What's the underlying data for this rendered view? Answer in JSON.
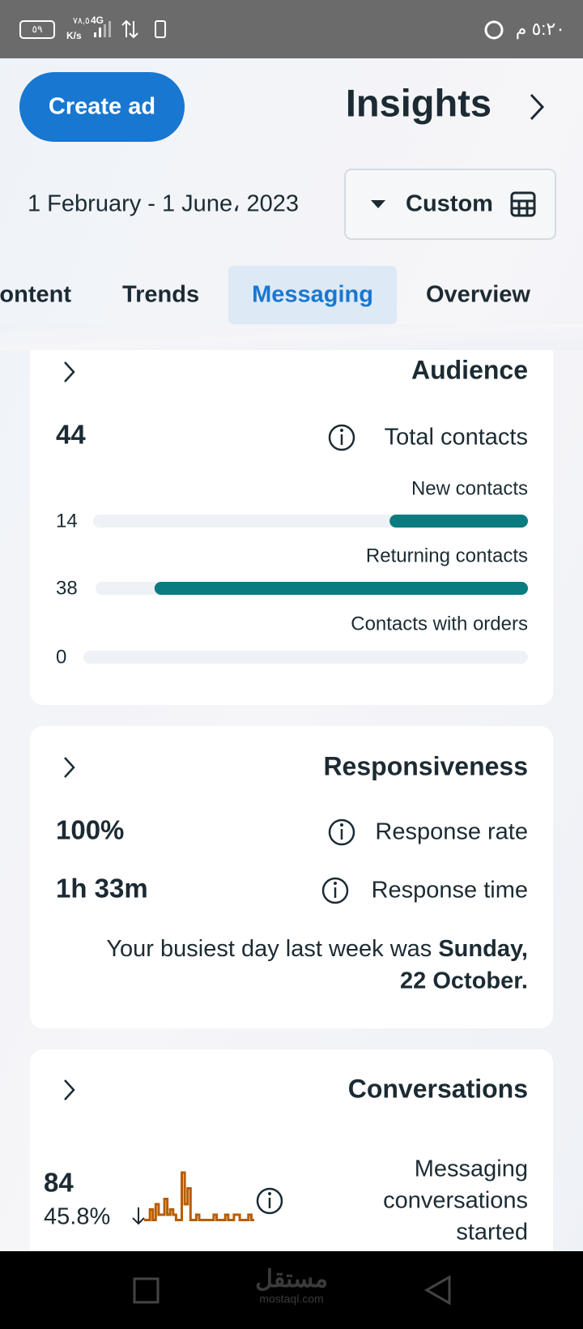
{
  "status_bar": {
    "time": "٥:٢٠ م",
    "battery": "٥٩",
    "speed": "٧٨,٥",
    "speed_unit": "K/s",
    "network": "4G"
  },
  "header": {
    "create_ad": "Create ad",
    "title": "Insights"
  },
  "date_range": {
    "text": "1 February - 1 June، 2023",
    "filter": "Custom"
  },
  "tabs": {
    "items": [
      "Content",
      "Trends",
      "Messaging",
      "Overview"
    ],
    "active": 2
  },
  "audience": {
    "title": "Audience",
    "total": 44,
    "total_label": "Total contacts",
    "rows": [
      {
        "label": "New contacts",
        "value": 14
      },
      {
        "label": "Returning contacts",
        "value": 38
      },
      {
        "label": "Contacts with orders",
        "value": 0
      }
    ]
  },
  "responsiveness": {
    "title": "Responsiveness",
    "rate": "100%",
    "rate_label": "Response rate",
    "time": "1h 33m",
    "time_label": "Response time",
    "busiest_text": "Your busiest day last week was",
    "busiest_day": [
      "Sunday,",
      "22 October."
    ]
  },
  "conversations": {
    "title": "Conversations",
    "total": 84,
    "change": "45.8%",
    "label": [
      "Messaging",
      "conversations",
      "started"
    ],
    "sparkline": {
      "ylim": [
        0,
        10
      ],
      "color": "#b85c00",
      "values": [
        1,
        1,
        3,
        1,
        4,
        2,
        2,
        5,
        2,
        3,
        2,
        1,
        1,
        10,
        4,
        7,
        1,
        1,
        2,
        1,
        1,
        1,
        1,
        1,
        2,
        1,
        1,
        1,
        2,
        1,
        1,
        2,
        2,
        1,
        1,
        1,
        2,
        1,
        1
      ]
    }
  },
  "watermark": {
    "arabic": "مستقل",
    "latin": "mostaql.com"
  }
}
